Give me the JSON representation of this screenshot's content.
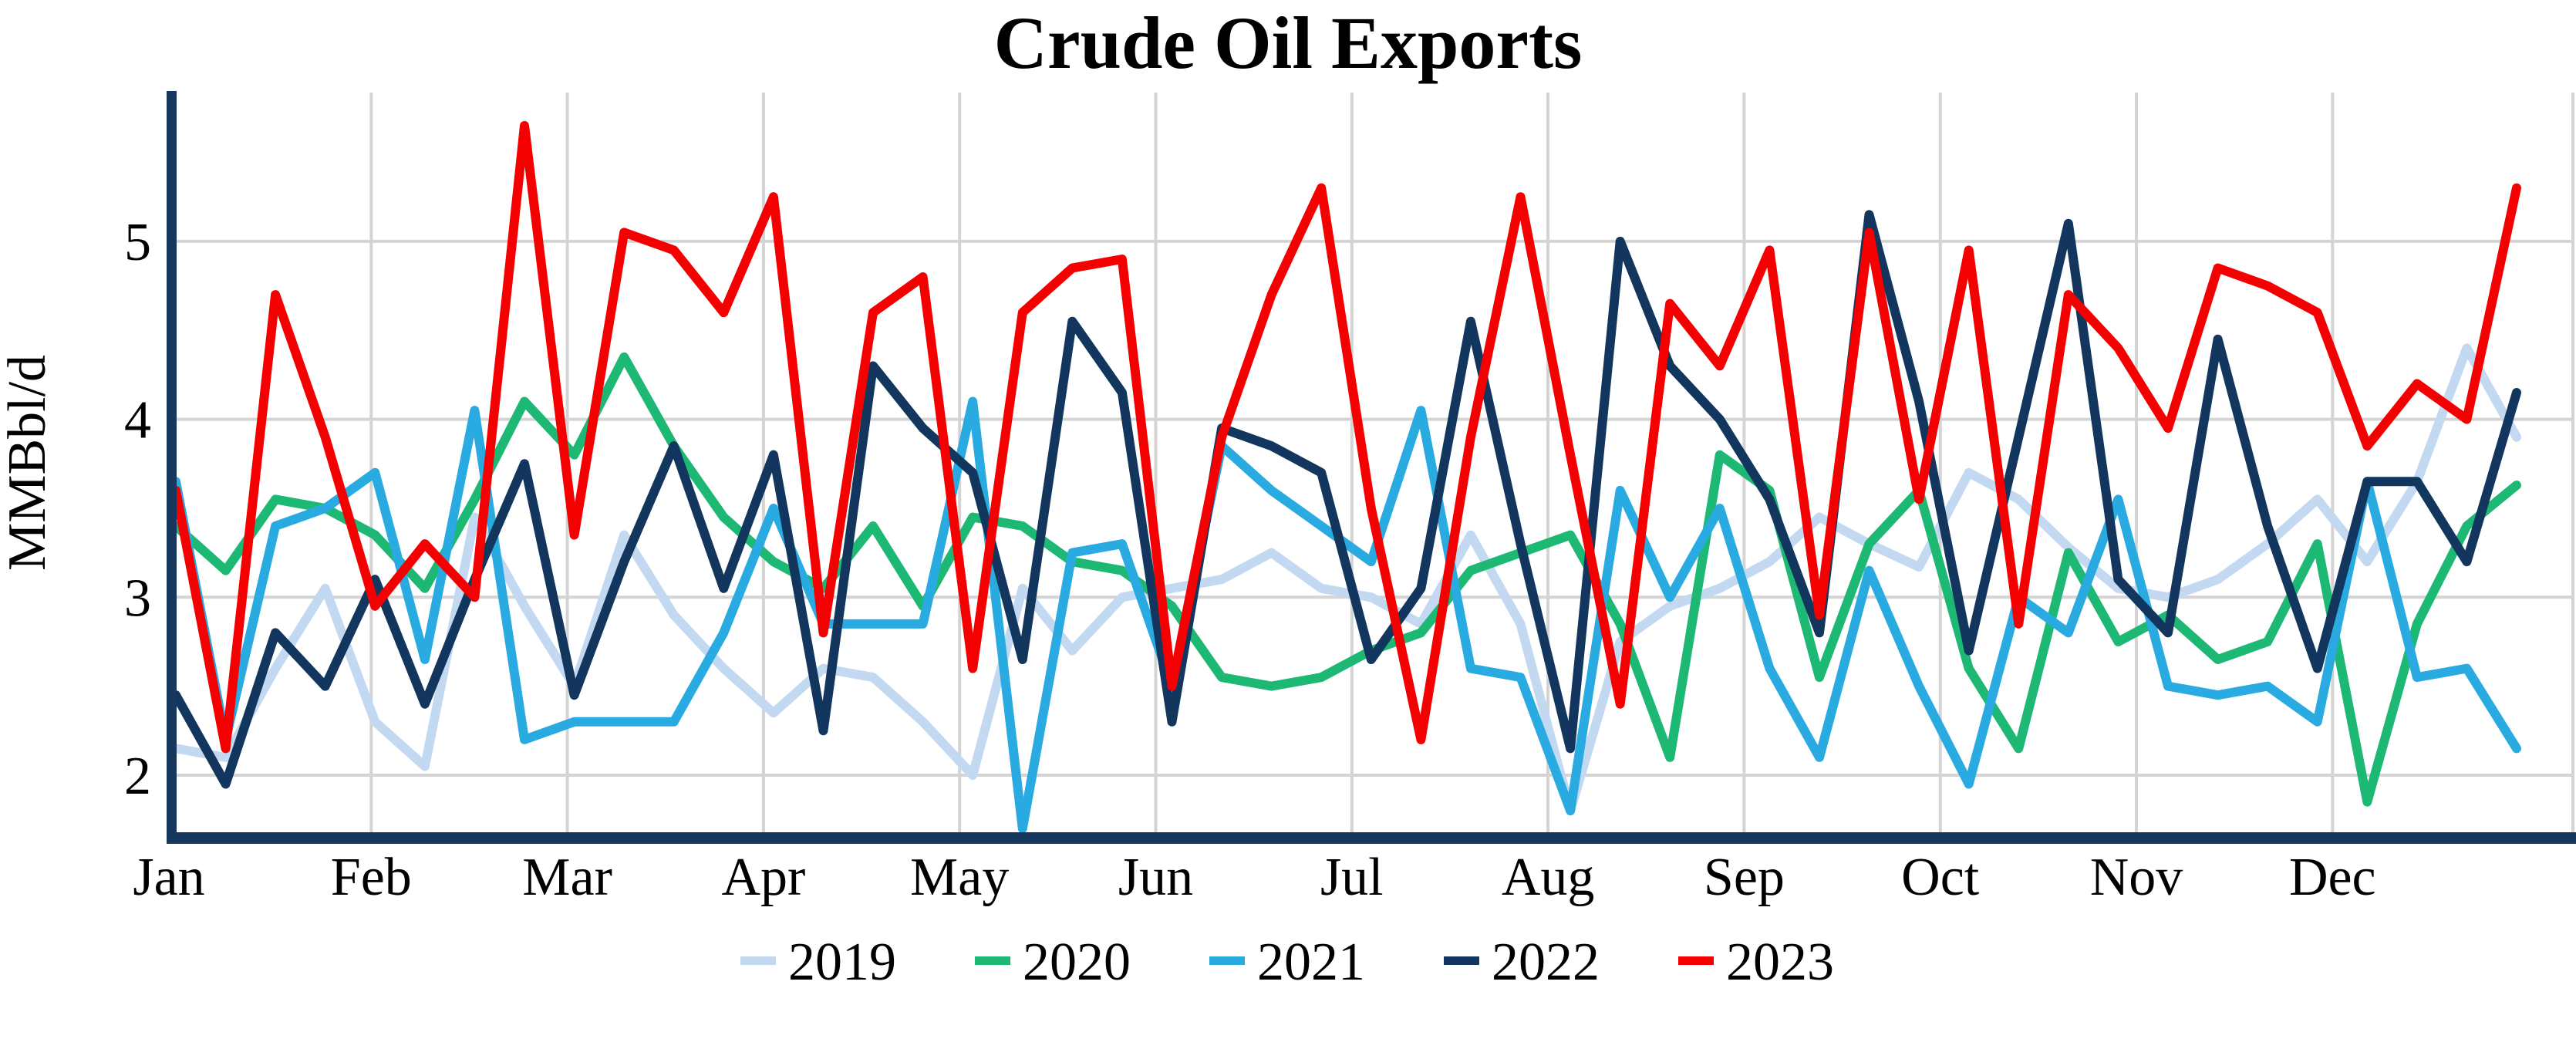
{
  "title": "Crude Oil Exports",
  "y_axis": {
    "label": "MMBbl/d",
    "ticks": [
      2,
      3,
      4,
      5
    ]
  },
  "x_axis": {
    "months": [
      "Jan",
      "Feb",
      "Mar",
      "Apr",
      "May",
      "Jun",
      "Jul",
      "Aug",
      "Sep",
      "Oct",
      "Nov",
      "Dec"
    ]
  },
  "colors": {
    "axis": "#17375E",
    "gridline": "#D4D4D4",
    "background": "#FFFFFF",
    "text": "#000000"
  },
  "chart_data": {
    "type": "line",
    "title": "Crude Oil Exports",
    "xlabel": "",
    "ylabel": "MMBbl/d",
    "ylim": [
      1.65,
      5.85
    ],
    "yticks": [
      2,
      3,
      4,
      5
    ],
    "grid": true,
    "legend_position": "bottom",
    "x_unit": "weekly values, 4 per month, Jan-Dec",
    "points_per_month": 4,
    "categories": [
      "Jan",
      "Feb",
      "Mar",
      "Apr",
      "May",
      "Jun",
      "Jul",
      "Aug",
      "Sep",
      "Oct",
      "Nov",
      "Dec"
    ],
    "series": [
      {
        "name": "2019",
        "color": "#C3D9F2",
        "values": [
          2.15,
          2.1,
          2.6,
          3.05,
          2.3,
          2.05,
          3.45,
          2.95,
          2.5,
          3.35,
          2.9,
          2.6,
          2.35,
          2.6,
          2.55,
          2.3,
          2.0,
          3.05,
          2.7,
          3.0,
          3.05,
          3.1,
          3.25,
          3.05,
          3.0,
          2.85,
          3.35,
          2.85,
          1.8,
          2.75,
          2.95,
          3.05,
          3.2,
          3.45,
          3.3,
          3.17,
          3.7,
          3.55,
          3.28,
          3.05,
          3.0,
          3.1,
          3.3,
          3.55,
          3.2,
          3.65,
          4.4,
          3.9
        ]
      },
      {
        "name": "2020",
        "color": "#1DB873",
        "values": [
          3.4,
          3.15,
          3.55,
          3.5,
          3.35,
          3.05,
          3.55,
          4.1,
          3.8,
          4.35,
          3.85,
          3.45,
          3.2,
          3.05,
          3.4,
          2.95,
          3.45,
          3.4,
          3.2,
          3.15,
          2.95,
          2.55,
          2.5,
          2.55,
          2.7,
          2.8,
          3.15,
          3.25,
          3.35,
          2.85,
          2.1,
          3.8,
          3.6,
          2.55,
          3.3,
          3.6,
          2.6,
          2.15,
          3.25,
          2.75,
          2.9,
          2.65,
          2.75,
          3.3,
          1.85,
          2.85,
          3.4,
          3.63
        ]
      },
      {
        "name": "2021",
        "color": "#29ABE2",
        "values": [
          3.65,
          2.2,
          3.4,
          3.5,
          3.7,
          2.65,
          4.05,
          2.2,
          2.3,
          2.3,
          2.3,
          2.8,
          3.5,
          2.85,
          2.85,
          2.85,
          4.1,
          1.7,
          3.25,
          3.3,
          2.5,
          3.85,
          3.6,
          3.4,
          3.2,
          4.05,
          2.6,
          2.55,
          1.8,
          3.6,
          3.0,
          3.5,
          2.6,
          2.1,
          3.15,
          2.5,
          1.95,
          3.0,
          2.8,
          3.55,
          2.5,
          2.45,
          2.5,
          2.3,
          3.65,
          2.55,
          2.6,
          2.15
        ]
      },
      {
        "name": "2022",
        "color": "#12365E",
        "values": [
          2.45,
          1.95,
          2.8,
          2.5,
          3.1,
          2.4,
          3.1,
          3.75,
          2.45,
          3.2,
          3.85,
          3.05,
          3.8,
          2.25,
          4.3,
          3.95,
          3.7,
          2.65,
          4.55,
          4.15,
          2.3,
          3.95,
          3.85,
          3.7,
          2.65,
          3.05,
          4.55,
          3.3,
          2.15,
          5.0,
          4.3,
          4.0,
          3.55,
          2.8,
          5.15,
          4.1,
          2.7,
          3.9,
          5.1,
          3.1,
          2.8,
          4.45,
          3.4,
          2.6,
          3.65,
          3.65,
          3.2,
          4.15
        ]
      },
      {
        "name": "2023",
        "color": "#F40000",
        "values": [
          3.6,
          2.15,
          4.7,
          3.9,
          2.95,
          3.3,
          3.0,
          5.65,
          3.35,
          5.05,
          4.95,
          4.6,
          5.25,
          2.8,
          4.6,
          4.8,
          2.6,
          4.6,
          4.85,
          4.9,
          2.5,
          3.9,
          4.7,
          5.3,
          3.5,
          2.2,
          3.9,
          5.25,
          3.8,
          2.4,
          4.65,
          4.3,
          4.95,
          2.9,
          5.05,
          3.55,
          4.95,
          2.85,
          4.7,
          4.4,
          3.95,
          4.85,
          4.75,
          4.6,
          3.85,
          4.2,
          4.0,
          5.3
        ]
      }
    ]
  },
  "legend": {
    "items": [
      "2019",
      "2020",
      "2021",
      "2022",
      "2023"
    ]
  }
}
